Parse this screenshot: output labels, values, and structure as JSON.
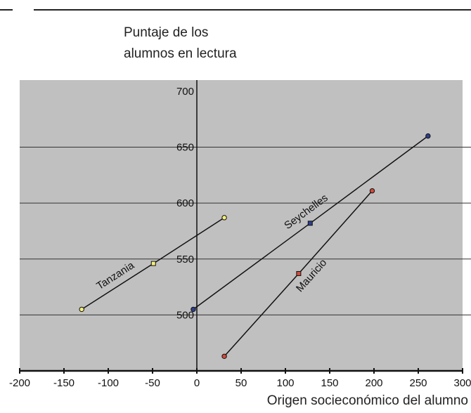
{
  "chart_data": {
    "type": "line",
    "title": "",
    "ylabel_lines": [
      "Puntaje de los",
      "alumnos en lectura"
    ],
    "xlabel": "Origen socieconómico del alumno",
    "xlim": [
      -200,
      300
    ],
    "ylim": [
      450,
      710
    ],
    "x_ticks": [
      -200,
      -150,
      -100,
      -50,
      0,
      50,
      100,
      150,
      200,
      250,
      300
    ],
    "x_tick_labels": [
      "-200",
      "-150",
      "-100",
      "-50",
      "0",
      "50",
      "100",
      "150",
      "200",
      "250",
      "300"
    ],
    "y_ticks": [
      500,
      550,
      600,
      650,
      700
    ],
    "y_tick_labels": [
      "500",
      "550",
      "600",
      "650",
      "700"
    ],
    "grid": "horizontal",
    "plot_background": "#c0c0c0",
    "series": [
      {
        "name": "Tanzania",
        "color": "#f5f07a",
        "points": [
          {
            "x": -130,
            "y": 505
          },
          {
            "x": -49,
            "y": 546
          },
          {
            "x": 31,
            "y": 587
          }
        ]
      },
      {
        "name": "Seychelles",
        "color": "#2f3f8f",
        "points": [
          {
            "x": -4,
            "y": 505
          },
          {
            "x": 128,
            "y": 582
          },
          {
            "x": 261,
            "y": 660
          }
        ]
      },
      {
        "name": "Mauricio",
        "color": "#d24b3c",
        "points": [
          {
            "x": 31,
            "y": 463
          },
          {
            "x": 115,
            "y": 537
          },
          {
            "x": 198,
            "y": 611
          }
        ]
      }
    ]
  }
}
